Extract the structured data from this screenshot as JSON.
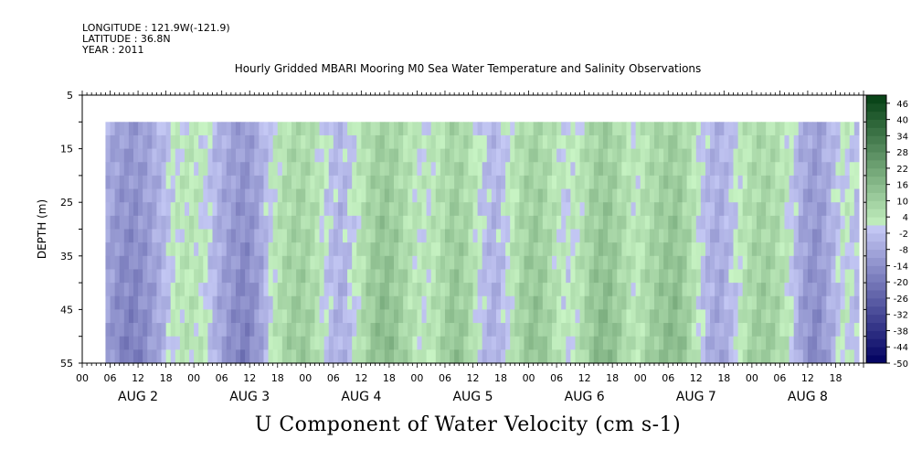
{
  "meta": {
    "longitude": "LONGITUDE : 121.9W(-121.9)",
    "latitude": "LATITUDE : 36.8N",
    "year": "YEAR : 2011"
  },
  "chart_data": {
    "type": "heatmap",
    "title": "Hourly Gridded MBARI Mooring M0 Sea Water Temperature and Salinity Observations",
    "xlabel": "U Component of Water Velocity (cm s-1)",
    "ylabel": "DEPTH (m)",
    "ylim": [
      55,
      5
    ],
    "y_ticks": [
      5,
      15,
      25,
      35,
      45,
      55
    ],
    "data_depth_range": [
      10,
      55
    ],
    "x_hour_labels": [
      "00",
      "06",
      "12",
      "18",
      "00",
      "06",
      "12",
      "18",
      "00",
      "06",
      "12",
      "18",
      "00",
      "06",
      "12",
      "18",
      "00",
      "06",
      "12",
      "18",
      "00",
      "06",
      "12",
      "18",
      "00",
      "06",
      "12",
      "18"
    ],
    "x_day_labels": [
      "AUG 2",
      "AUG 3",
      "AUG 4",
      "AUG 5",
      "AUG 6",
      "AUG 7",
      "AUG 8"
    ],
    "x_range_hours": [
      0,
      168
    ],
    "data_time_range_hours": [
      5,
      167
    ],
    "colorbar_labels": [
      46,
      40,
      34,
      28,
      22,
      16,
      10,
      4,
      -2,
      -8,
      -14,
      -20,
      -26,
      -32,
      -38,
      -44,
      -50
    ],
    "colorbar_levels": [
      -50,
      -47,
      -44,
      -41,
      -38,
      -35,
      -32,
      -29,
      -26,
      -23,
      -20,
      -17,
      -14,
      -11,
      -8,
      -5,
      -2,
      1,
      4,
      7,
      10,
      13,
      16,
      19,
      22,
      25,
      28,
      31,
      34,
      37,
      40,
      43,
      46,
      49
    ],
    "colors": {
      "negative_dark": "#000060",
      "negative_light": "#c4c8f4",
      "positive_light": "#c8f4c4",
      "positive_dark": "#003c10"
    },
    "velocity_profile": {
      "hours": [
        5,
        8,
        11,
        14,
        17,
        20,
        23,
        26,
        29,
        32,
        35,
        38,
        41,
        44,
        47,
        50,
        53,
        56,
        59,
        62,
        65,
        68,
        71,
        74,
        77,
        80,
        83,
        86,
        89,
        92,
        95,
        98,
        101,
        104,
        107,
        110,
        113,
        116,
        119,
        122,
        125,
        128,
        131,
        134,
        137,
        140,
        143,
        146,
        149,
        152,
        155,
        158,
        161,
        164,
        167
      ],
      "depth_mean_u": [
        -8,
        -14,
        -16,
        -12,
        -6,
        2,
        4,
        2,
        -6,
        -12,
        -16,
        -10,
        2,
        8,
        10,
        6,
        -2,
        -6,
        2,
        10,
        14,
        10,
        4,
        2,
        6,
        12,
        8,
        -2,
        -6,
        2,
        10,
        12,
        6,
        0,
        4,
        12,
        14,
        8,
        2,
        8,
        12,
        14,
        6,
        -4,
        -8,
        -2,
        6,
        10,
        8,
        2,
        -10,
        -14,
        -6,
        2,
        -4
      ]
    }
  }
}
